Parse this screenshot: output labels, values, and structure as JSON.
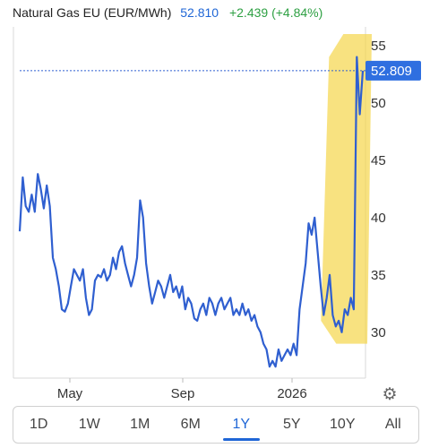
{
  "header": {
    "title": "Natural Gas EU (EUR/MWh)",
    "price": "52.810",
    "change": "+2.439 (+4.84%)"
  },
  "chart_data": {
    "type": "line",
    "series": [
      {
        "values": [
          38.8,
          43.5,
          41.0,
          40.5,
          42.0,
          40.5,
          43.8,
          42.5,
          40.8,
          42.8,
          41.0,
          36.5,
          35.5,
          34.0,
          32.0,
          31.8,
          32.5,
          34.0,
          35.5,
          35.0,
          34.5,
          35.5,
          33.0,
          31.5,
          32.0,
          34.5,
          35.0,
          34.8,
          35.5,
          34.5,
          35.0,
          36.5,
          35.5,
          37.0,
          37.5,
          36.0,
          35.0,
          34.0,
          35.0,
          36.5,
          41.5,
          40.0,
          36.0,
          34.0,
          32.5,
          33.5,
          34.5,
          34.0,
          33.0,
          34.0,
          35.0,
          33.5,
          34.0,
          33.0,
          34.0,
          32.0,
          33.0,
          32.5,
          31.2,
          31.0,
          32.0,
          32.5,
          31.5,
          33.0,
          32.5,
          31.5,
          32.5,
          33.0,
          32.0,
          32.5,
          33.0,
          31.5,
          32.0,
          31.5,
          32.5,
          31.5,
          32.0,
          31.0,
          31.5,
          30.5,
          30.0,
          29.0,
          28.5,
          27.0,
          27.5,
          27.0,
          28.5,
          27.5,
          28.0,
          28.5,
          28.0,
          29.0,
          28.0,
          32.0,
          34.0,
          36.0,
          39.5,
          38.5,
          40.0,
          37.0,
          34.0,
          31.5,
          33.0,
          35.0,
          31.5,
          30.5,
          31.0,
          30.0,
          32.0,
          31.5,
          33.0,
          32.0,
          54.0,
          49.0,
          52.8
        ]
      }
    ],
    "x_ticks": [
      "May",
      "Sep",
      "2026"
    ],
    "y_ticks": [
      30,
      35,
      40,
      45,
      50,
      55
    ],
    "ylim": [
      26,
      56
    ],
    "current_value": 52.809,
    "current_label": "52.809",
    "line_color": "#2f5fd0",
    "highlight_color": "#f5d54a",
    "grid": false
  },
  "settings_icon": "gear-icon",
  "tabs": [
    {
      "label": "1D",
      "active": false
    },
    {
      "label": "1W",
      "active": false
    },
    {
      "label": "1M",
      "active": false
    },
    {
      "label": "6M",
      "active": false
    },
    {
      "label": "1Y",
      "active": true
    },
    {
      "label": "5Y",
      "active": false
    },
    {
      "label": "10Y",
      "active": false
    },
    {
      "label": "All",
      "active": false
    }
  ]
}
